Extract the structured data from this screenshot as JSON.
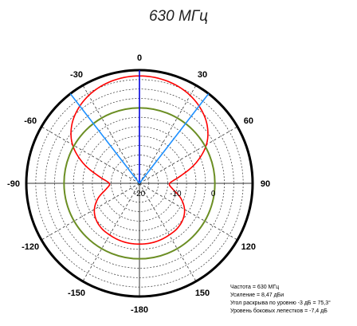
{
  "title": "630 МГц",
  "chart_data": {
    "type": "polar",
    "title": "630 МГц",
    "angle_labels": [
      "0",
      "30",
      "60",
      "90",
      "120",
      "150",
      "-180",
      "-150",
      "-120",
      "-90",
      "-60",
      "-30"
    ],
    "angle_values": [
      0,
      30,
      60,
      90,
      120,
      150,
      180,
      -150,
      -120,
      -90,
      -60,
      -30
    ],
    "radial_range_db": [
      -20,
      10
    ],
    "radial_ticks": [
      {
        "value": -20,
        "label": "-20"
      },
      {
        "value": -10,
        "label": "-10"
      },
      {
        "value": 0,
        "label": "0"
      }
    ],
    "series": [
      {
        "color": "#ff0000",
        "angles_deg": [
          0,
          10,
          20,
          30,
          40,
          50,
          60,
          70,
          80,
          90,
          100,
          110,
          120,
          130,
          140,
          150,
          160,
          170,
          180,
          190,
          200,
          210,
          220,
          230,
          240,
          250,
          260,
          270,
          280,
          290,
          300,
          310,
          320,
          330,
          340,
          350
        ],
        "gain_db": [
          8.47,
          8.3,
          7.8,
          6.9,
          5.5,
          3.5,
          0.5,
          -4,
          -9,
          -12,
          -11,
          -8.3,
          -6.2,
          -5,
          -4.4,
          -4.2,
          -4.0,
          -3.9,
          -3.9,
          -3.9,
          -4.0,
          -4.2,
          -4.4,
          -5,
          -6.2,
          -8.3,
          -11,
          -12,
          -9,
          -4,
          0.5,
          3.5,
          5.5,
          6.9,
          7.8,
          8.3
        ]
      },
      {
        "color": "#6b8e23",
        "constant_db": 0
      }
    ],
    "markers": [
      {
        "angle_deg": 0,
        "color": "#0000dd"
      },
      {
        "angle_deg": 37.65,
        "color": "#1e90ff"
      },
      {
        "angle_deg": -37.65,
        "color": "#1e90ff"
      }
    ],
    "grid": true
  },
  "info": {
    "lines": [
      "Частота = 630 МГц",
      "Усиление = 8,47 дБи",
      "Угол раскрыва по уровню -3 дБ = 75,3°",
      "Уровень боковых лепестков = -7,4 дБ"
    ]
  }
}
